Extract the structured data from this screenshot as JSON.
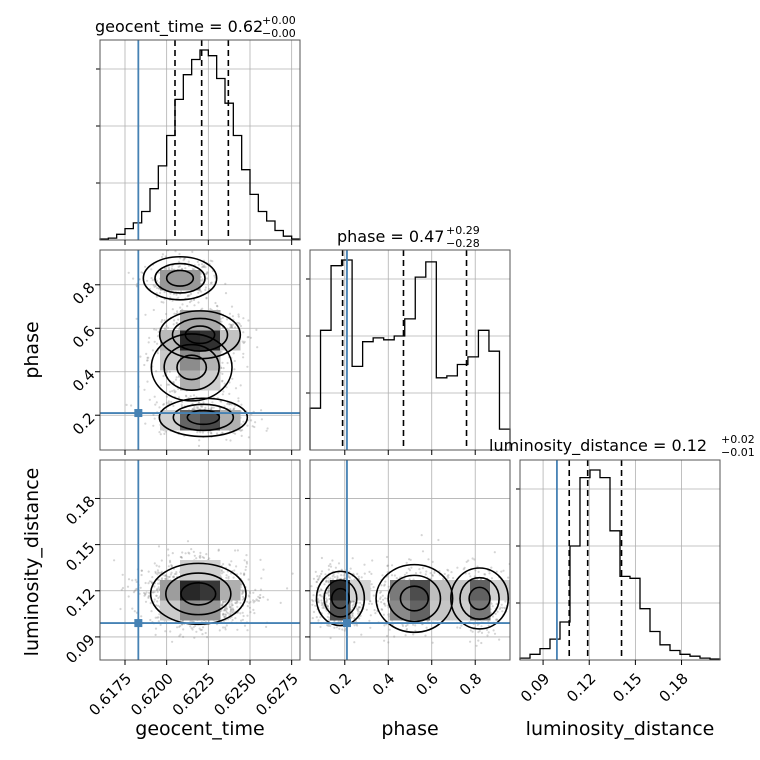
{
  "chart_data": {
    "type": "corner",
    "params": [
      {
        "name": "geocent_time",
        "title_prefix": "geocent_time = 0.62",
        "err_plus": "+0.00",
        "err_minus": "−0.00",
        "range": [
          0.616,
          0.628
        ],
        "ticks": [
          0.6175,
          0.62,
          0.6225,
          0.625,
          0.6275
        ],
        "tick_labels": [
          "0.6175",
          "0.6200",
          "0.6225",
          "0.6250",
          "0.6275"
        ],
        "injection": 0.6183,
        "quantiles": [
          0.6205,
          0.6221,
          0.6237
        ],
        "hist_y": [
          0.005,
          0.01,
          0.03,
          0.06,
          0.09,
          0.15,
          0.27,
          0.39,
          0.55,
          0.74,
          0.87,
          0.95,
          1.0,
          0.97,
          0.85,
          0.72,
          0.55,
          0.37,
          0.24,
          0.15,
          0.1,
          0.05,
          0.02,
          0.005
        ]
      },
      {
        "name": "phase",
        "title_prefix": "phase = 0.47",
        "err_plus": "+0.29",
        "err_minus": "−0.28",
        "range": [
          0.04,
          0.96
        ],
        "ticks": [
          0.2,
          0.4,
          0.6,
          0.8
        ],
        "tick_labels": [
          "0.2",
          "0.4",
          "0.6",
          "0.8"
        ],
        "injection": 0.21,
        "quantiles": [
          0.19,
          0.47,
          0.76
        ],
        "hist_y": [
          0.22,
          0.63,
          0.97,
          1.0,
          0.44,
          0.57,
          0.59,
          0.58,
          0.6,
          0.69,
          0.91,
          0.99,
          0.38,
          0.39,
          0.45,
          0.49,
          0.63,
          0.52,
          0.11
        ]
      },
      {
        "name": "luminosity_distance",
        "title_prefix": "luminosity_distance = 0.12",
        "err_plus": "+0.02",
        "err_minus": "−0.01",
        "range": [
          0.075,
          0.205
        ],
        "ticks": [
          0.09,
          0.12,
          0.15,
          0.18
        ],
        "tick_labels": [
          "0.09",
          "0.12",
          "0.15",
          "0.18"
        ],
        "injection": 0.099,
        "quantiles": [
          0.107,
          0.119,
          0.141
        ],
        "hist_y": [
          0.01,
          0.03,
          0.06,
          0.11,
          0.2,
          0.6,
          0.96,
          1.0,
          0.96,
          0.68,
          0.44,
          0.43,
          0.27,
          0.15,
          0.08,
          0.05,
          0.03,
          0.02,
          0.01,
          0.005
        ]
      }
    ],
    "density_blobs": {
      "phase_vs_geocent_time": [
        {
          "x": 0.622,
          "y": 0.57,
          "sx": 0.0011,
          "sy": 0.05,
          "w": 1.0
        },
        {
          "x": 0.6222,
          "y": 0.19,
          "sx": 0.0012,
          "sy": 0.04,
          "w": 0.8
        },
        {
          "x": 0.6208,
          "y": 0.83,
          "sx": 0.001,
          "sy": 0.045,
          "w": 0.5
        },
        {
          "x": 0.6215,
          "y": 0.42,
          "sx": 0.0011,
          "sy": 0.07,
          "w": 0.45
        }
      ],
      "luminosity_distance_vs_geocent_time": [
        {
          "x": 0.6219,
          "y": 0.118,
          "sx": 0.0013,
          "sy": 0.009,
          "w": 1.0
        }
      ],
      "luminosity_distance_vs_phase": [
        {
          "x": 0.18,
          "y": 0.115,
          "sx": 0.05,
          "sy": 0.008,
          "w": 1.0
        },
        {
          "x": 0.52,
          "y": 0.115,
          "sx": 0.08,
          "sy": 0.01,
          "w": 0.8
        },
        {
          "x": 0.82,
          "y": 0.115,
          "sx": 0.06,
          "sy": 0.009,
          "w": 0.7
        }
      ]
    },
    "injection_color": "#4682b4",
    "hist_color": "#000000",
    "grid": true
  }
}
